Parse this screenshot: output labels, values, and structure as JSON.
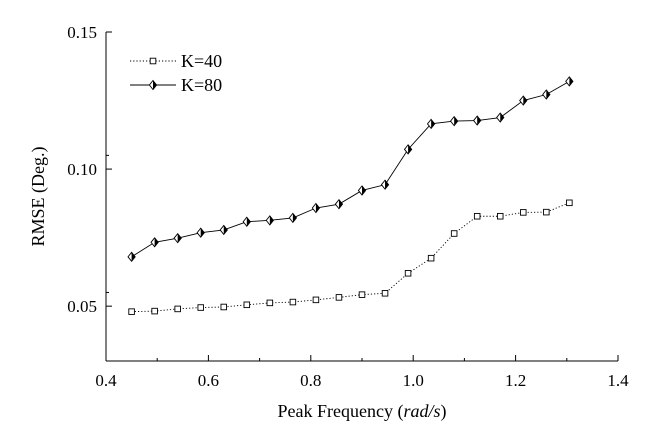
{
  "chart_data": {
    "type": "line",
    "title": "",
    "xlabel": "Peak Frequency",
    "xlabel_unit": "rad/s",
    "xlabel_open": " (",
    "xlabel_close": ")",
    "ylabel": "RMSE (Deg.)",
    "xlim": [
      0.4,
      1.4
    ],
    "ylim": [
      0.03,
      0.15
    ],
    "xticks": [
      0.4,
      0.6,
      0.8,
      1.0,
      1.2,
      1.4
    ],
    "xtick_labels": [
      "0.4",
      "0.6",
      "0.8",
      "1.0",
      "1.2",
      "1.4"
    ],
    "yticks": [
      0.05,
      0.1,
      0.15
    ],
    "ytick_labels": [
      "0.05",
      "0.10",
      "0.15"
    ],
    "legend_position": "top-left",
    "grid": false,
    "x": [
      0.45,
      0.495,
      0.54,
      0.585,
      0.63,
      0.675,
      0.72,
      0.765,
      0.81,
      0.855,
      0.9,
      0.945,
      0.99,
      1.035,
      1.08,
      1.125,
      1.17,
      1.215,
      1.26,
      1.305
    ],
    "series": [
      {
        "name": "K=40",
        "style": "dotted",
        "marker": "square",
        "values": [
          0.048,
          0.0482,
          0.049,
          0.0495,
          0.0497,
          0.0505,
          0.0512,
          0.0515,
          0.0523,
          0.0532,
          0.0542,
          0.0547,
          0.062,
          0.0675,
          0.0765,
          0.0828,
          0.0828,
          0.0842,
          0.0843,
          0.0877
        ]
      },
      {
        "name": "K=80",
        "style": "solid",
        "marker": "diamond",
        "values": [
          0.068,
          0.0733,
          0.0748,
          0.0768,
          0.0778,
          0.0808,
          0.0813,
          0.0822,
          0.0858,
          0.0872,
          0.0922,
          0.0943,
          0.1072,
          0.1165,
          0.1175,
          0.1177,
          0.1188,
          0.125,
          0.1272,
          0.132
        ]
      }
    ]
  }
}
